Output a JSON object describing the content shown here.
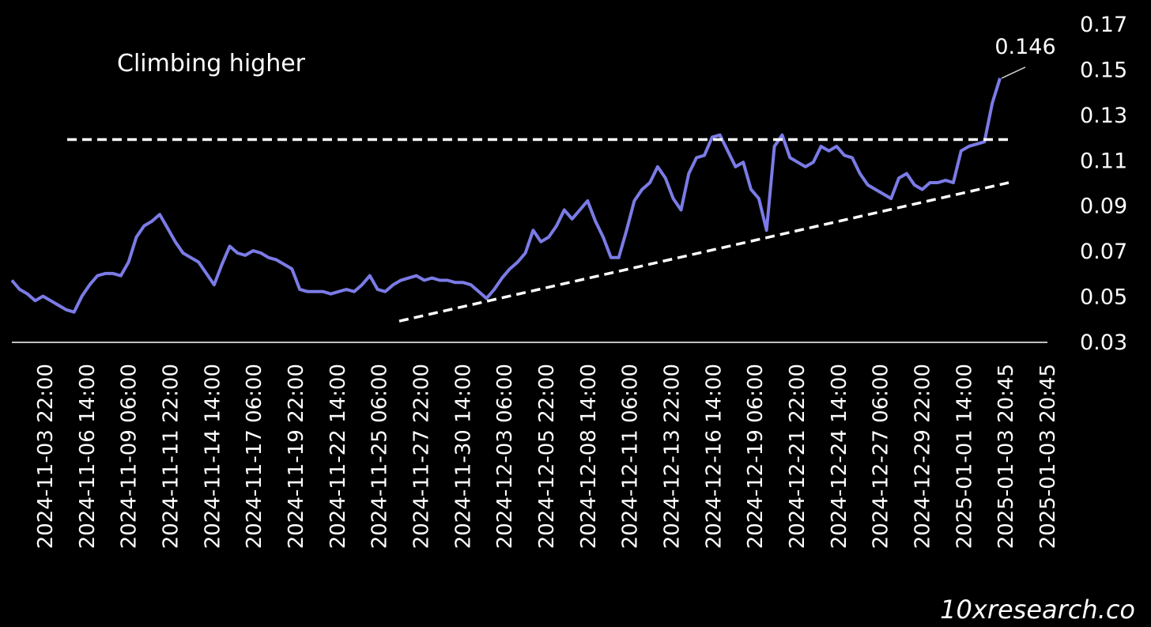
{
  "chart_data": {
    "type": "line",
    "title": "Climbing higher",
    "watermark": "10xresearch.co",
    "annotation": {
      "text": "0.146"
    },
    "xticks": [
      "2024-11-03 22:00",
      "2024-11-06 14:00",
      "2024-11-09 06:00",
      "2024-11-11 22:00",
      "2024-11-14 14:00",
      "2024-11-17 06:00",
      "2024-11-19 22:00",
      "2024-11-22 14:00",
      "2024-11-25 06:00",
      "2024-11-27 22:00",
      "2024-11-30 14:00",
      "2024-12-03 06:00",
      "2024-12-05 22:00",
      "2024-12-08 14:00",
      "2024-12-11 06:00",
      "2024-12-13 22:00",
      "2024-12-16 14:00",
      "2024-12-19 06:00",
      "2024-12-21 22:00",
      "2024-12-24 14:00",
      "2024-12-27 06:00",
      "2024-12-29 22:00",
      "2025-01-01 14:00",
      "2025-01-03 20:45",
      "2025-01-03 20:45"
    ],
    "ylim": [
      0.03,
      0.17
    ],
    "yticks": [
      0.03,
      0.05,
      0.07,
      0.09,
      0.11,
      0.13,
      0.15,
      0.17
    ],
    "series": [
      {
        "color": "#7b7be6",
        "values": [
          0.057,
          0.053,
          0.051,
          0.048,
          0.05,
          0.048,
          0.046,
          0.044,
          0.043,
          0.05,
          0.055,
          0.059,
          0.06,
          0.06,
          0.059,
          0.065,
          0.076,
          0.081,
          0.083,
          0.086,
          0.08,
          0.074,
          0.069,
          0.067,
          0.065,
          0.06,
          0.055,
          0.064,
          0.072,
          0.069,
          0.068,
          0.07,
          0.069,
          0.067,
          0.066,
          0.064,
          0.062,
          0.053,
          0.052,
          0.052,
          0.052,
          0.051,
          0.052,
          0.053,
          0.052,
          0.055,
          0.059,
          0.053,
          0.052,
          0.055,
          0.057,
          0.058,
          0.059,
          0.057,
          0.058,
          0.057,
          0.057,
          0.056,
          0.056,
          0.055,
          0.052,
          0.049,
          0.053,
          0.058,
          0.062,
          0.065,
          0.069,
          0.079,
          0.074,
          0.076,
          0.081,
          0.088,
          0.084,
          0.088,
          0.092,
          0.083,
          0.076,
          0.067,
          0.067,
          0.079,
          0.092,
          0.097,
          0.1,
          0.107,
          0.102,
          0.093,
          0.088,
          0.104,
          0.111,
          0.112,
          0.12,
          0.121,
          0.114,
          0.107,
          0.109,
          0.097,
          0.093,
          0.079,
          0.116,
          0.121,
          0.111,
          0.109,
          0.107,
          0.109,
          0.116,
          0.114,
          0.116,
          0.112,
          0.111,
          0.104,
          0.099,
          0.097,
          0.095,
          0.093,
          0.102,
          0.104,
          0.099,
          0.097,
          0.1,
          0.1,
          0.101,
          0.1,
          0.114,
          0.116,
          0.117,
          0.118,
          0.135,
          0.146
        ]
      }
    ],
    "trendlines": [
      {
        "start": 0.119,
        "end": 0.119
      },
      {
        "start": 0.039,
        "end": 0.1
      }
    ]
  }
}
